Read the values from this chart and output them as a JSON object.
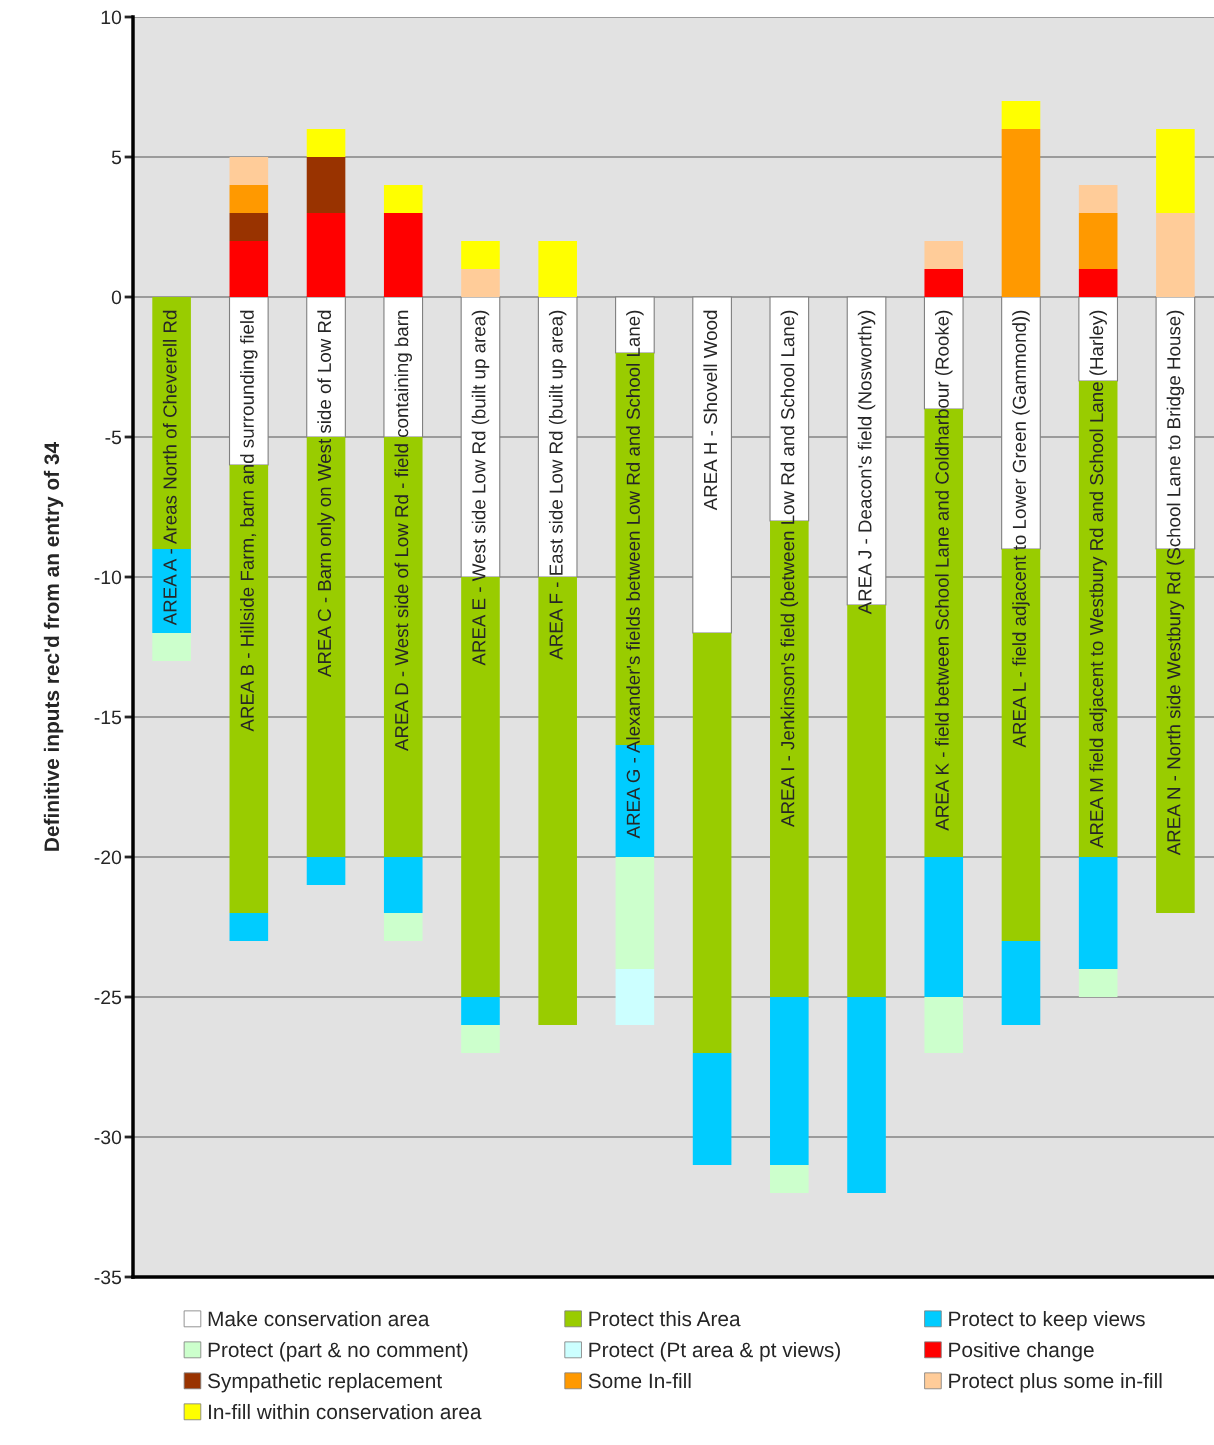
{
  "chart_data": {
    "type": "bar",
    "stacked": true,
    "ylabel": "Definitive inputs rec'd from an entry of 34",
    "categories": [
      "AREA A - Areas North of Cheverell Rd",
      "AREA B - Hillside Farm, barn and surrounding field",
      "AREA C - Barn only on West side of Low Rd",
      "AREA D - West side of Low Rd - field containing barn",
      "AREA E - West side Low Rd (built up area)",
      "AREA F - East side Low Rd (built up area)",
      "AREA G - Alexander's fields between Low Rd and School Lane)",
      "AREA H - Shovell Wood",
      "AREA I - Jenkinson's field (between Low Rd and School Lane)",
      "AREA J - Deacon's field (Nosworthy)",
      "AREA K - field between School Lane and Coldharbour (Rooke)",
      "AREA L - field adjacent to Lower Green (Gammond))",
      "AREA M field adjacent to Westbury Rd and School Lane (Harley)",
      "AREA N - North side Westbury Rd (School Lane to Bridge House)"
    ],
    "series": [
      {
        "name": "Make conservation area",
        "color": "#ffffff",
        "values": [
          0,
          -6,
          -5,
          -5,
          -10,
          -10,
          -2,
          -12,
          -8,
          -11,
          -4,
          -9,
          -3,
          -9
        ]
      },
      {
        "name": "Protect this Area",
        "color": "#99cc00",
        "values": [
          -9,
          -16,
          -15,
          -15,
          -15,
          -16,
          -14,
          -15,
          -17,
          -14,
          -16,
          -14,
          -17,
          -13
        ]
      },
      {
        "name": "Protect to keep views",
        "color": "#00ccff",
        "values": [
          -3,
          -1,
          -1,
          -2,
          -1,
          0,
          -4,
          -4,
          -6,
          -7,
          -5,
          -3,
          -4,
          0
        ]
      },
      {
        "name": "Protect (part & no comment)",
        "color": "#ccffcc",
        "values": [
          -1,
          0,
          0,
          -1,
          -1,
          0,
          -4,
          0,
          -1,
          0,
          -2,
          0,
          -1,
          0
        ]
      },
      {
        "name": "Protect (Pt area & pt views)",
        "color": "#ccffff",
        "values": [
          0,
          0,
          0,
          0,
          0,
          0,
          -2,
          0,
          0,
          0,
          0,
          0,
          0,
          0
        ]
      },
      {
        "name": "Positive change",
        "color": "#ff0000",
        "values": [
          0,
          2,
          3,
          3,
          0,
          0,
          0,
          0,
          0,
          0,
          1,
          0,
          1,
          0
        ]
      },
      {
        "name": "Sympathetic replacement",
        "color": "#993300",
        "values": [
          0,
          1,
          2,
          0,
          0,
          0,
          0,
          0,
          0,
          0,
          0,
          0,
          0,
          0
        ]
      },
      {
        "name": "Some In-fill",
        "color": "#ff9900",
        "values": [
          0,
          1,
          0,
          0,
          0,
          0,
          0,
          0,
          0,
          0,
          0,
          6,
          2,
          0
        ]
      },
      {
        "name": "Protect plus some in-fill",
        "color": "#ffcc99",
        "values": [
          0,
          1,
          0,
          0,
          1,
          0,
          0,
          0,
          0,
          0,
          1,
          0,
          1,
          3
        ]
      },
      {
        "name": "In-fill within conservation area",
        "color": "#ffff00",
        "values": [
          0,
          0,
          1,
          1,
          1,
          2,
          0,
          0,
          0,
          0,
          0,
          1,
          0,
          3
        ]
      }
    ],
    "ylim": [
      -35,
      10
    ],
    "yticks": [
      -35,
      -30,
      -25,
      -20,
      -15,
      -10,
      -5,
      0,
      5,
      10
    ],
    "grid": "y",
    "legend": "bottom"
  }
}
